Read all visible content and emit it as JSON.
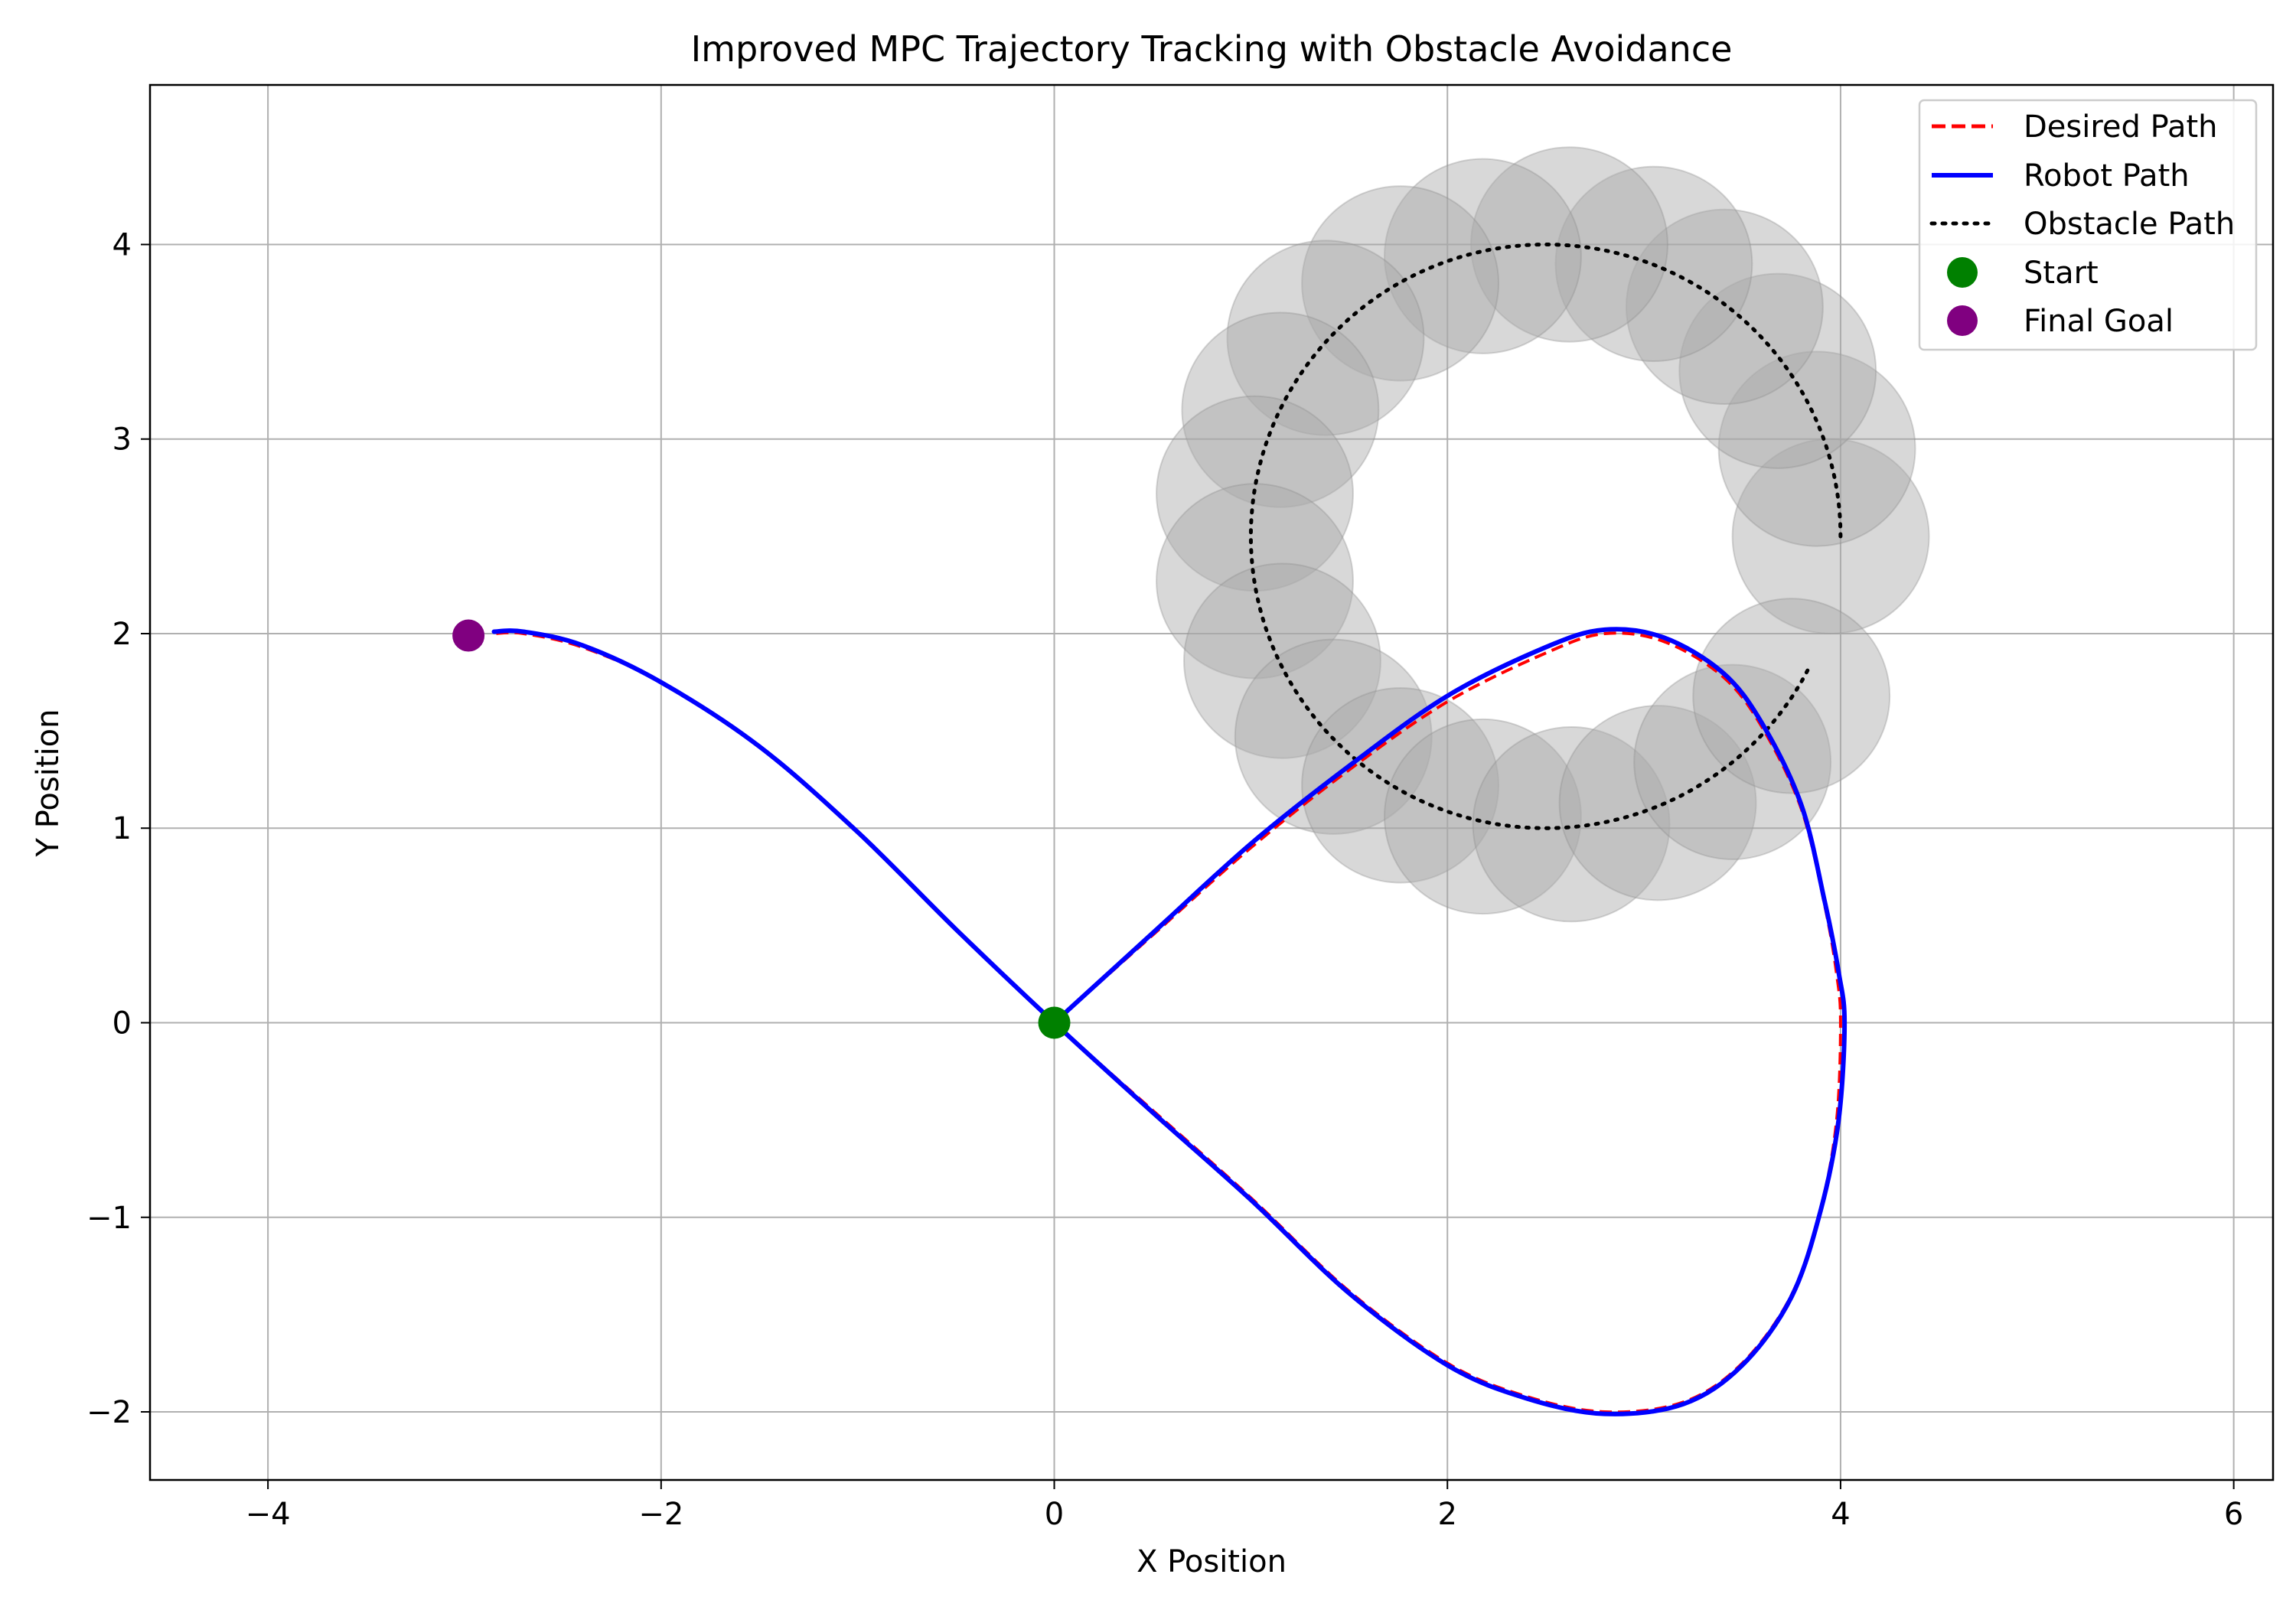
{
  "chart_data": {
    "type": "line",
    "title": "Improved MPC Trajectory Tracking with Obstacle Avoidance",
    "xlabel": "X Position",
    "ylabel": "Y Position",
    "xlim": [
      -4.6,
      6.2
    ],
    "ylim": [
      -2.35,
      4.82
    ],
    "grid": true,
    "legend_position": "top-right",
    "x_ticks": [
      {
        "value": -4,
        "label": "−4"
      },
      {
        "value": -2,
        "label": "−2"
      },
      {
        "value": 0,
        "label": "0"
      },
      {
        "value": 2,
        "label": "2"
      },
      {
        "value": 4,
        "label": "4"
      },
      {
        "value": 6,
        "label": "6"
      }
    ],
    "y_ticks": [
      {
        "value": -2,
        "label": "−2"
      },
      {
        "value": -1,
        "label": "−1"
      },
      {
        "value": 0,
        "label": "0"
      },
      {
        "value": 1,
        "label": "1"
      },
      {
        "value": 2,
        "label": "2"
      },
      {
        "value": 3,
        "label": "3"
      },
      {
        "value": 4,
        "label": "4"
      }
    ],
    "series": [
      {
        "name": "Desired Path",
        "type": "line",
        "color": "#ff0000",
        "line_style": "dashed",
        "x": [
          0,
          0.5,
          1,
          1.5,
          2,
          2.5,
          2.8,
          3.1,
          3.4,
          3.6,
          3.8,
          3.92,
          3.98,
          4.0,
          3.98,
          3.9,
          3.75,
          3.5,
          3.2,
          2.8,
          2.4,
          2.0,
          1.5,
          1.0,
          0.5,
          0,
          -0.5,
          -1,
          -1.5,
          -2,
          -2.4,
          -2.7,
          -2.85
        ],
        "y": [
          0,
          0.45,
          0.9,
          1.3,
          1.65,
          1.9,
          2.0,
          1.96,
          1.78,
          1.52,
          1.1,
          0.6,
          0.25,
          0,
          -0.5,
          -0.95,
          -1.4,
          -1.75,
          -1.95,
          -2.0,
          -1.92,
          -1.75,
          -1.38,
          -0.9,
          -0.45,
          0,
          0.48,
          0.98,
          1.42,
          1.75,
          1.93,
          2.0,
          2.0
        ]
      },
      {
        "name": "Robot Path",
        "type": "line",
        "color": "#0000ff",
        "line_style": "solid",
        "x": [
          0,
          0.5,
          1,
          1.5,
          2,
          2.5,
          2.8,
          3.1,
          3.4,
          3.6,
          3.8,
          3.92,
          3.99,
          4.02,
          3.99,
          3.9,
          3.75,
          3.5,
          3.2,
          2.8,
          2.4,
          2.0,
          1.5,
          1.0,
          0.5,
          0,
          -0.5,
          -1,
          -1.5,
          -2,
          -2.4,
          -2.7,
          -2.85
        ],
        "y": [
          0,
          0.46,
          0.92,
          1.32,
          1.68,
          1.93,
          2.02,
          1.98,
          1.8,
          1.54,
          1.12,
          0.62,
          0.26,
          0,
          -0.5,
          -0.96,
          -1.41,
          -1.76,
          -1.96,
          -2.01,
          -1.93,
          -1.76,
          -1.39,
          -0.91,
          -0.46,
          0,
          0.48,
          0.98,
          1.42,
          1.75,
          1.94,
          2.01,
          2.01
        ]
      },
      {
        "name": "Obstacle Path",
        "type": "circle-arc",
        "color": "#000000",
        "line_style": "dotted",
        "center": [
          2.5,
          2.5
        ],
        "radius": 1.5,
        "start_angle_deg": 0,
        "end_angle_deg": -25
      }
    ],
    "obstacles": {
      "color": "#a9a9a9",
      "opacity": 0.45,
      "radius": 0.5,
      "centers": [
        [
          3.95,
          2.5
        ],
        [
          3.88,
          2.95
        ],
        [
          3.68,
          3.35
        ],
        [
          3.41,
          3.68
        ],
        [
          3.05,
          3.9
        ],
        [
          2.62,
          4.0
        ],
        [
          2.18,
          3.94
        ],
        [
          1.76,
          3.8
        ],
        [
          1.38,
          3.52
        ],
        [
          1.15,
          3.15
        ],
        [
          1.02,
          2.72
        ],
        [
          1.02,
          2.27
        ],
        [
          1.16,
          1.86
        ],
        [
          1.42,
          1.47
        ],
        [
          1.76,
          1.22
        ],
        [
          2.18,
          1.06
        ],
        [
          2.63,
          1.02
        ],
        [
          3.07,
          1.13
        ],
        [
          3.45,
          1.34
        ],
        [
          3.75,
          1.68
        ]
      ]
    },
    "markers": [
      {
        "name": "Start",
        "x": 0,
        "y": 0,
        "color": "#008000"
      },
      {
        "name": "Final Goal",
        "x": -2.98,
        "y": 1.99,
        "color": "#800080"
      }
    ]
  }
}
